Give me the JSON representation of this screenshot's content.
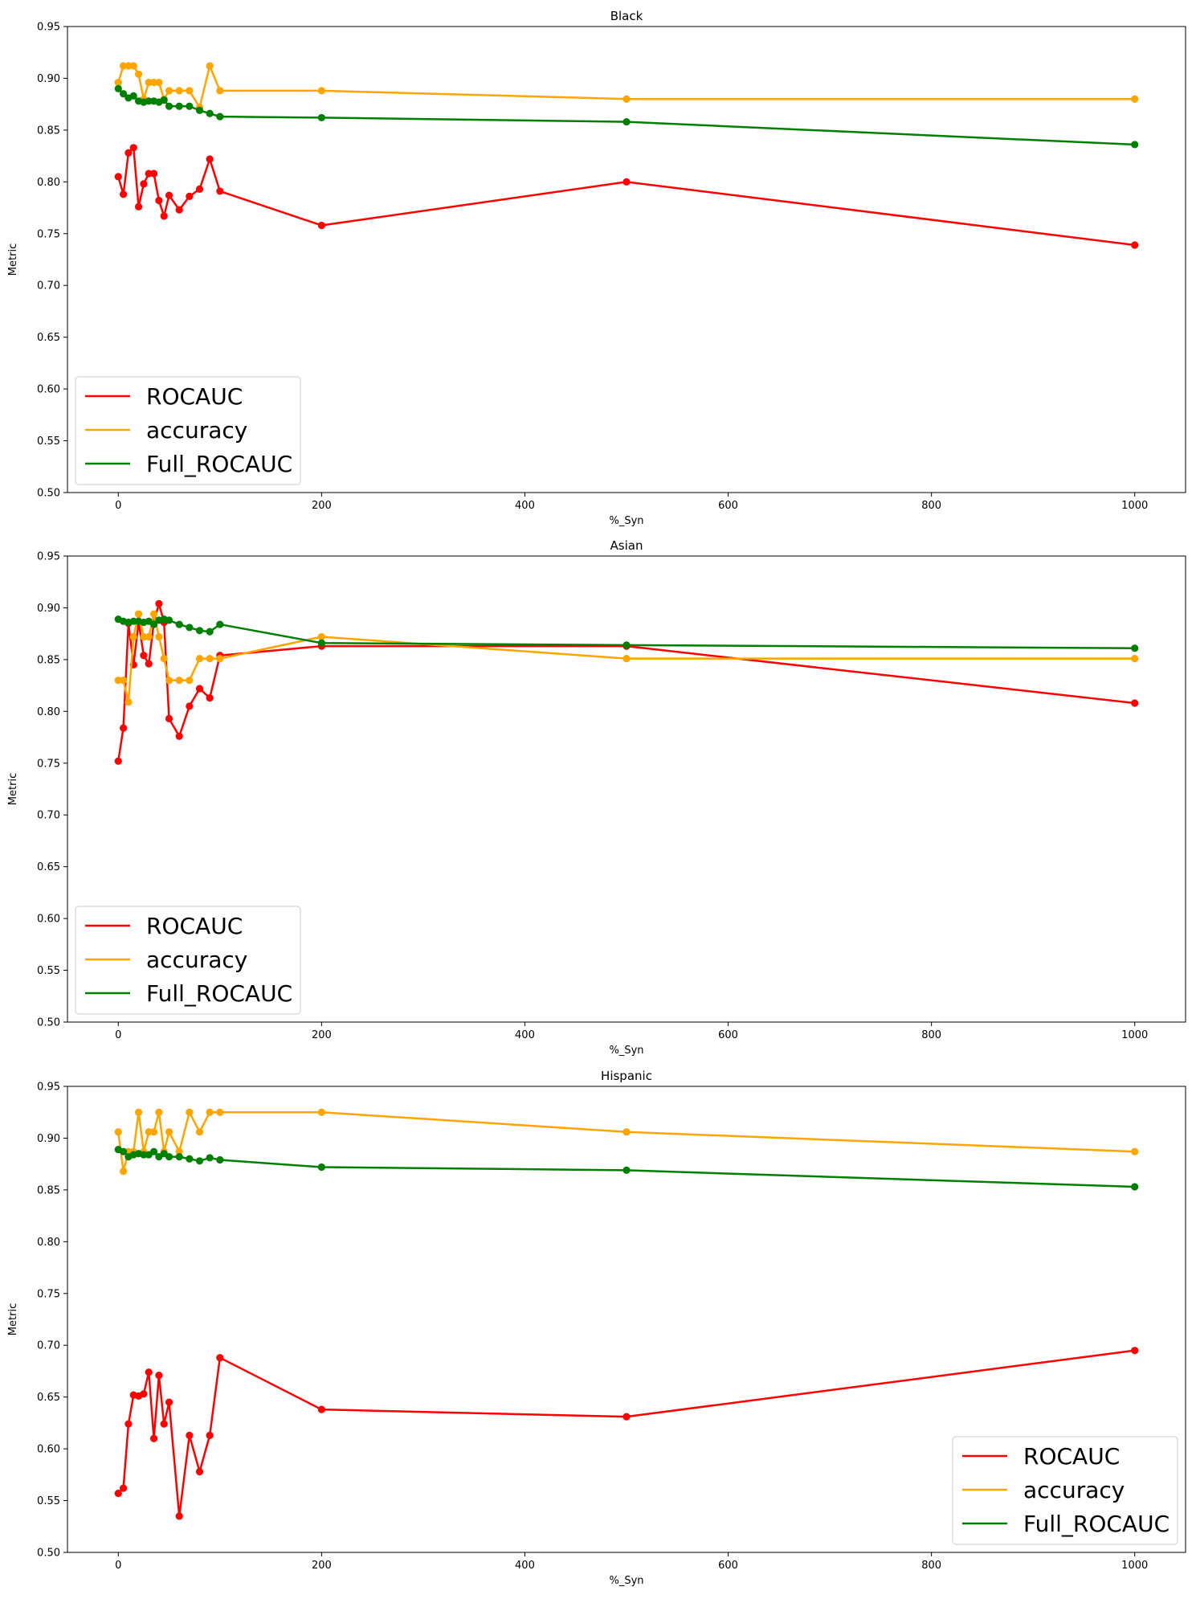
{
  "chart_data": [
    {
      "type": "line",
      "title": "Black",
      "xlabel": "%_Syn",
      "ylabel": "Metric",
      "xlim": [
        -50,
        1050
      ],
      "ylim": [
        0.5,
        0.95
      ],
      "xticks": [
        "0",
        "200",
        "400",
        "600",
        "800",
        "1000"
      ],
      "yticks": [
        "0.50",
        "0.55",
        "0.60",
        "0.65",
        "0.70",
        "0.75",
        "0.80",
        "0.85",
        "0.90",
        "0.95"
      ],
      "legend_position": "lower-left",
      "grid": false,
      "x": [
        0,
        5,
        10,
        15,
        20,
        25,
        30,
        35,
        40,
        45,
        50,
        60,
        70,
        80,
        90,
        100,
        200,
        500,
        1000
      ],
      "series": [
        {
          "name": "ROCAUC",
          "color": "#ff0000",
          "values": [
            0.805,
            0.788,
            0.828,
            0.833,
            0.776,
            0.798,
            0.808,
            0.808,
            0.782,
            0.767,
            0.787,
            0.773,
            0.786,
            0.793,
            0.822,
            0.791,
            0.758,
            0.8,
            0.739
          ]
        },
        {
          "name": "accuracy",
          "color": "#ffa500",
          "values": [
            0.896,
            0.912,
            0.912,
            0.912,
            0.904,
            0.88,
            0.896,
            0.896,
            0.896,
            0.88,
            0.888,
            0.888,
            0.888,
            0.872,
            0.912,
            0.888,
            0.888,
            0.88,
            0.88
          ]
        },
        {
          "name": "Full_ROCAUC",
          "color": "#008000",
          "values": [
            0.89,
            0.885,
            0.881,
            0.883,
            0.878,
            0.877,
            0.878,
            0.878,
            0.877,
            0.879,
            0.873,
            0.873,
            0.873,
            0.869,
            0.866,
            0.863,
            0.862,
            0.858,
            0.836
          ]
        }
      ]
    },
    {
      "type": "line",
      "title": "Asian",
      "xlabel": "%_Syn",
      "ylabel": "Metric",
      "xlim": [
        -50,
        1050
      ],
      "ylim": [
        0.5,
        0.95
      ],
      "xticks": [
        "0",
        "200",
        "400",
        "600",
        "800",
        "1000"
      ],
      "yticks": [
        "0.50",
        "0.55",
        "0.60",
        "0.65",
        "0.70",
        "0.75",
        "0.80",
        "0.85",
        "0.90",
        "0.95"
      ],
      "legend_position": "lower-left",
      "grid": false,
      "x": [
        0,
        5,
        10,
        15,
        20,
        25,
        30,
        35,
        40,
        45,
        50,
        60,
        70,
        80,
        90,
        100,
        200,
        500,
        1000
      ],
      "series": [
        {
          "name": "ROCAUC",
          "color": "#ff0000",
          "values": [
            0.752,
            0.784,
            0.885,
            0.845,
            0.886,
            0.854,
            0.846,
            0.886,
            0.904,
            0.886,
            0.793,
            0.776,
            0.805,
            0.822,
            0.813,
            0.854,
            0.863,
            0.863,
            0.808
          ]
        },
        {
          "name": "accuracy",
          "color": "#ffa500",
          "values": [
            0.83,
            0.83,
            0.809,
            0.872,
            0.894,
            0.872,
            0.872,
            0.894,
            0.872,
            0.851,
            0.83,
            0.83,
            0.83,
            0.851,
            0.851,
            0.851,
            0.872,
            0.851,
            0.851
          ]
        },
        {
          "name": "Full_ROCAUC",
          "color": "#008000",
          "values": [
            0.889,
            0.887,
            0.886,
            0.887,
            0.887,
            0.886,
            0.887,
            0.884,
            0.888,
            0.889,
            0.888,
            0.884,
            0.881,
            0.878,
            0.877,
            0.884,
            0.866,
            0.864,
            0.861
          ]
        }
      ]
    },
    {
      "type": "line",
      "title": "Hispanic",
      "xlabel": "%_Syn",
      "ylabel": "Metric",
      "xlim": [
        -50,
        1050
      ],
      "ylim": [
        0.5,
        0.95
      ],
      "xticks": [
        "0",
        "200",
        "400",
        "600",
        "800",
        "1000"
      ],
      "yticks": [
        "0.50",
        "0.55",
        "0.60",
        "0.65",
        "0.70",
        "0.75",
        "0.80",
        "0.85",
        "0.90",
        "0.95"
      ],
      "legend_position": "lower-right",
      "grid": false,
      "x": [
        0,
        5,
        10,
        15,
        20,
        25,
        30,
        35,
        40,
        45,
        50,
        60,
        70,
        80,
        90,
        100,
        200,
        500,
        1000
      ],
      "series": [
        {
          "name": "ROCAUC",
          "color": "#ff0000",
          "values": [
            0.557,
            0.562,
            0.624,
            0.652,
            0.651,
            0.653,
            0.674,
            0.61,
            0.671,
            0.624,
            0.645,
            0.535,
            0.613,
            0.578,
            0.613,
            0.688,
            0.638,
            0.631,
            0.695
          ]
        },
        {
          "name": "accuracy",
          "color": "#ffa500",
          "values": [
            0.906,
            0.868,
            0.887,
            0.887,
            0.925,
            0.887,
            0.906,
            0.906,
            0.925,
            0.887,
            0.906,
            0.887,
            0.925,
            0.906,
            0.925,
            0.925,
            0.925,
            0.906,
            0.887
          ]
        },
        {
          "name": "Full_ROCAUC",
          "color": "#008000",
          "values": [
            0.889,
            0.887,
            0.882,
            0.884,
            0.885,
            0.884,
            0.884,
            0.887,
            0.882,
            0.885,
            0.882,
            0.882,
            0.88,
            0.878,
            0.881,
            0.879,
            0.872,
            0.869,
            0.853
          ]
        }
      ]
    }
  ]
}
